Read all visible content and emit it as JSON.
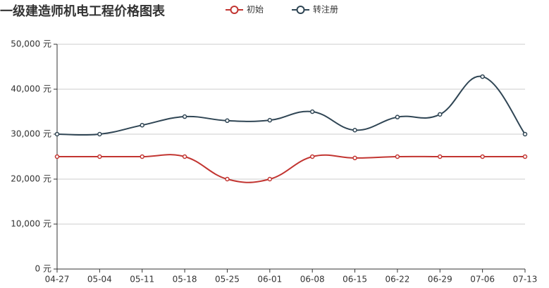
{
  "chart_data": {
    "type": "line",
    "title": "一级建造师机电工程价格图表",
    "categories": [
      "04-27",
      "05-04",
      "05-11",
      "05-18",
      "05-25",
      "06-01",
      "06-08",
      "06-15",
      "06-22",
      "06-29",
      "07-06",
      "07-13"
    ],
    "series": [
      {
        "name": "初始",
        "color": "#c23531",
        "values": [
          25000,
          25000,
          25000,
          25000,
          20000,
          20000,
          25000,
          24700,
          25000,
          25000,
          25000,
          25000
        ]
      },
      {
        "name": "转注册",
        "color": "#2f4554",
        "values": [
          30000,
          30000,
          32000,
          33900,
          33000,
          33100,
          35000,
          30900,
          33800,
          34400,
          42800,
          30000
        ]
      }
    ],
    "ylim": [
      0,
      50000
    ],
    "yticks": [
      {
        "value": 0,
        "label": "0 元"
      },
      {
        "value": 10000,
        "label": "10,000 元"
      },
      {
        "value": 20000,
        "label": "20,000 元"
      },
      {
        "value": 30000,
        "label": "30,000 元"
      },
      {
        "value": 40000,
        "label": "40,000 元"
      },
      {
        "value": 50000,
        "label": "50,000 元"
      }
    ],
    "grid": true,
    "smooth": true,
    "legend": "top"
  }
}
